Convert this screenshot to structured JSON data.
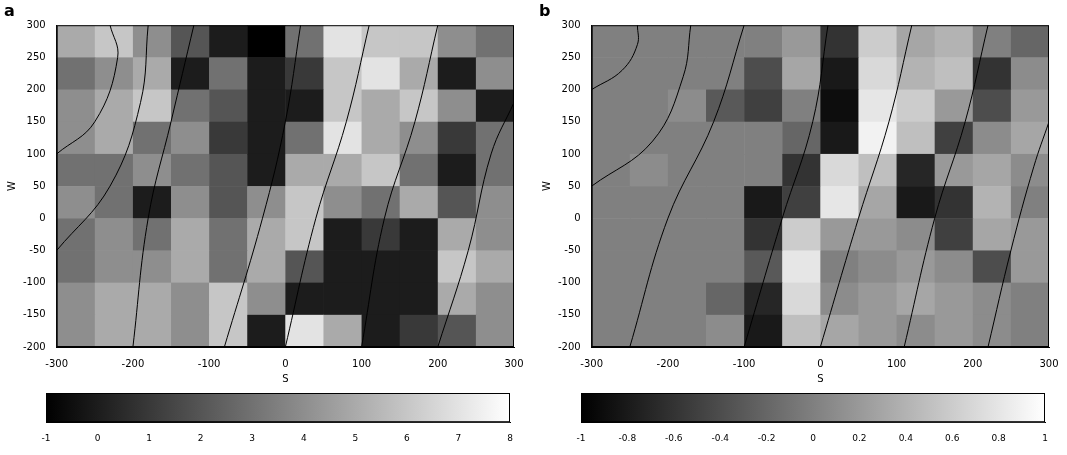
{
  "chart_data": [
    {
      "type": "heatmap",
      "title": "a",
      "xlabel": "S",
      "ylabel": "W",
      "xlim": [
        -300,
        300
      ],
      "ylim": [
        -200,
        300
      ],
      "xticks": [
        -300,
        -200,
        -100,
        0,
        100,
        200,
        300
      ],
      "yticks": [
        -200,
        -150,
        -100,
        -50,
        0,
        50,
        100,
        150,
        200,
        250,
        300
      ],
      "x": [
        -275,
        -225,
        -175,
        -125,
        -75,
        -25,
        25,
        75,
        125,
        175,
        225,
        275
      ],
      "y": [
        275,
        225,
        175,
        125,
        75,
        25,
        -25,
        -75,
        -125,
        -175
      ],
      "cells": [
        [
          5,
          6,
          4,
          2,
          0,
          -1,
          3,
          7,
          6,
          6,
          4,
          3
        ],
        [
          3,
          4,
          5,
          0,
          3,
          0,
          1,
          6,
          7,
          5,
          0,
          4
        ],
        [
          4,
          5,
          6,
          3,
          2,
          0,
          0,
          6,
          5,
          6,
          4,
          0
        ],
        [
          4,
          5,
          3,
          4,
          1,
          0,
          3,
          7,
          5,
          4,
          1,
          3
        ],
        [
          3,
          3,
          4,
          3,
          2,
          0,
          5,
          5,
          6,
          3,
          0,
          3
        ],
        [
          4,
          3,
          0,
          4,
          2,
          4,
          6,
          4,
          3,
          5,
          2,
          4
        ],
        [
          3,
          4,
          3,
          5,
          3,
          5,
          6,
          0,
          1,
          0,
          5,
          4
        ],
        [
          3,
          4,
          4,
          5,
          3,
          5,
          2,
          0,
          0,
          0,
          6,
          5
        ],
        [
          4,
          5,
          5,
          4,
          6,
          4,
          0,
          0,
          0,
          0,
          5,
          4
        ],
        [
          4,
          5,
          5,
          4,
          6,
          0,
          7,
          5,
          0,
          1,
          2,
          4
        ]
      ],
      "colorbar_range": [
        -1,
        8
      ],
      "colorbar_ticks": [
        -1,
        0,
        1,
        2,
        3,
        4,
        5,
        6,
        7,
        8
      ],
      "contours": [
        [
          [
            -300,
            100
          ],
          [
            -250,
            150
          ],
          [
            -220,
            250
          ],
          [
            -230,
            300
          ]
        ],
        [
          [
            -300,
            -50
          ],
          [
            -230,
            50
          ],
          [
            -190,
            180
          ],
          [
            -180,
            300
          ]
        ],
        [
          [
            -200,
            -200
          ],
          [
            -180,
            0
          ],
          [
            -150,
            150
          ],
          [
            -120,
            300
          ]
        ],
        [
          [
            -80,
            -200
          ],
          [
            -30,
            0
          ],
          [
            0,
            150
          ],
          [
            20,
            300
          ]
        ],
        [
          [
            0,
            -200
          ],
          [
            40,
            0
          ],
          [
            80,
            150
          ],
          [
            110,
            300
          ]
        ],
        [
          [
            100,
            -200
          ],
          [
            130,
            0
          ],
          [
            170,
            150
          ],
          [
            200,
            300
          ]
        ],
        [
          [
            200,
            -200
          ],
          [
            240,
            -50
          ],
          [
            270,
            100
          ],
          [
            300,
            180
          ]
        ]
      ]
    },
    {
      "type": "heatmap",
      "title": "b",
      "xlabel": "S",
      "ylabel": "W",
      "xlim": [
        -300,
        300
      ],
      "ylim": [
        -200,
        300
      ],
      "xticks": [
        -300,
        -200,
        -100,
        0,
        100,
        200,
        300
      ],
      "yticks": [
        -200,
        -150,
        -100,
        -50,
        0,
        50,
        100,
        150,
        200,
        250,
        300
      ],
      "x": [
        -275,
        -225,
        -175,
        -125,
        -75,
        -25,
        25,
        75,
        125,
        175,
        225,
        275
      ],
      "y": [
        275,
        225,
        175,
        125,
        75,
        25,
        -25,
        -75,
        -125,
        -175
      ],
      "cells": [
        [
          0,
          0,
          0,
          0,
          0,
          0.2,
          -0.6,
          0.6,
          0.3,
          0.4,
          0,
          -0.2
        ],
        [
          0,
          0,
          0,
          0,
          -0.4,
          0.3,
          -0.8,
          0.7,
          0.4,
          0.5,
          -0.6,
          0.1
        ],
        [
          0,
          0,
          0.1,
          -0.3,
          -0.5,
          0,
          -0.9,
          0.8,
          0.6,
          0.2,
          -0.4,
          0.2
        ],
        [
          0,
          0,
          0,
          0,
          0,
          -0.2,
          -0.8,
          0.9,
          0.5,
          -0.5,
          0.1,
          0.3
        ],
        [
          0,
          0.1,
          0,
          0,
          0,
          -0.6,
          0.7,
          0.5,
          -0.7,
          0.2,
          0.3,
          0.1
        ],
        [
          0,
          0,
          0,
          0,
          -0.8,
          -0.5,
          0.8,
          0.3,
          -0.8,
          -0.6,
          0.4,
          0
        ],
        [
          0,
          0,
          0,
          0,
          -0.6,
          0.6,
          0.2,
          0.2,
          0.1,
          -0.5,
          0.3,
          0.2
        ],
        [
          0,
          0,
          0,
          0,
          -0.3,
          0.8,
          0,
          0.1,
          0.2,
          0.1,
          -0.4,
          0.2
        ],
        [
          0,
          0,
          0,
          -0.2,
          -0.7,
          0.7,
          0.1,
          0.2,
          0.3,
          0.2,
          0.1,
          0
        ],
        [
          0,
          0,
          0,
          0.1,
          -0.8,
          0.5,
          0.3,
          0.2,
          0.1,
          0.2,
          0.1,
          0
        ]
      ],
      "colorbar_range": [
        -1,
        1
      ],
      "colorbar_ticks": [
        -1,
        -0.8,
        -0.6,
        -0.4,
        -0.2,
        0,
        0.2,
        0.4,
        0.6,
        0.8,
        1
      ],
      "contours": [
        [
          [
            -300,
            200
          ],
          [
            -260,
            230
          ],
          [
            -240,
            270
          ],
          [
            -240,
            300
          ]
        ],
        [
          [
            -300,
            50
          ],
          [
            -220,
            120
          ],
          [
            -180,
            220
          ],
          [
            -170,
            300
          ]
        ],
        [
          [
            -250,
            -200
          ],
          [
            -200,
            0
          ],
          [
            -140,
            150
          ],
          [
            -100,
            300
          ]
        ],
        [
          [
            -100,
            -200
          ],
          [
            -50,
            0
          ],
          [
            -10,
            150
          ],
          [
            10,
            300
          ]
        ],
        [
          [
            0,
            -200
          ],
          [
            50,
            0
          ],
          [
            90,
            150
          ],
          [
            120,
            300
          ]
        ],
        [
          [
            110,
            -200
          ],
          [
            150,
            0
          ],
          [
            190,
            150
          ],
          [
            220,
            300
          ]
        ],
        [
          [
            220,
            -200
          ],
          [
            250,
            -50
          ],
          [
            280,
            80
          ],
          [
            300,
            150
          ]
        ]
      ]
    }
  ]
}
